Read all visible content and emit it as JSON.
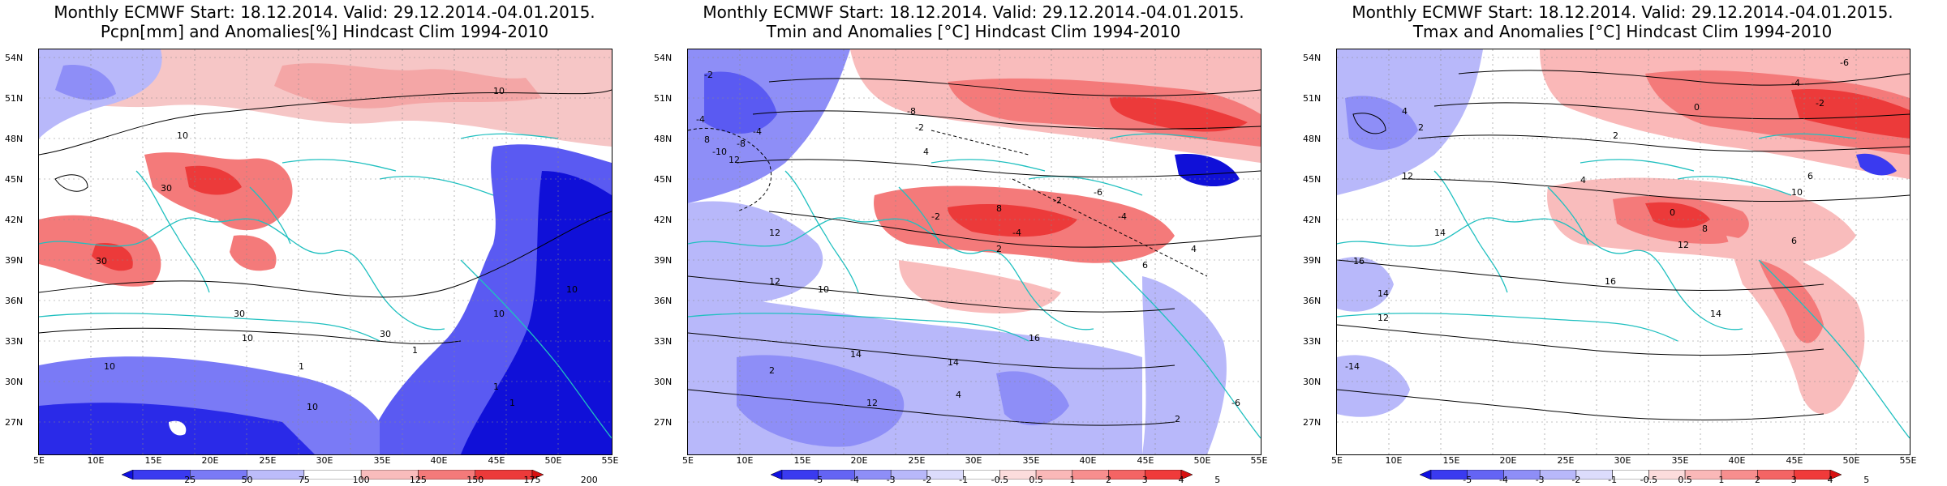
{
  "panels": [
    {
      "id": "pcpn",
      "title_line1": "Monthly ECMWF Start: 18.12.2014. Valid: 29.12.2014.-04.01.2015.",
      "title_line2": "Pcpn[mm] and Anomalies[%] Hindcast Clim 1994-2010",
      "colorbar_labels": [
        "25",
        "50",
        "75",
        "100",
        "125",
        "150",
        "175",
        "200"
      ],
      "colorbar_colors": [
        "#1010e0",
        "#3a3af0",
        "#7a7af6",
        "#bcbcfa",
        "#ffffff",
        "#f9bcbc",
        "#f47a7a",
        "#ec3a3a",
        "#d81010"
      ],
      "contour_labels": [
        "10",
        "10",
        "30",
        "30",
        "30",
        "10",
        "10",
        "10",
        "30",
        "1",
        "10",
        "1",
        "1",
        "1",
        "10"
      ]
    },
    {
      "id": "tmin",
      "title_line1": "Monthly ECMWF Start: 18.12.2014. Valid: 29.12.2014.-04.01.2015.",
      "title_line2": "Tmin and Anomalies [°C] Hindcast Clim 1994-2010",
      "colorbar_labels": [
        "-5",
        "-4",
        "-3",
        "-2",
        "-1",
        "-0.5",
        "0.5",
        "1",
        "2",
        "3",
        "4",
        "5"
      ],
      "colorbar_colors": [
        "#1010e0",
        "#3a3af0",
        "#6464f4",
        "#8e8ef7",
        "#b8b8fa",
        "#dcdcfc",
        "#ffffff",
        "#fcdcdc",
        "#fab8b8",
        "#f78e8e",
        "#f46464",
        "#f03a3a",
        "#d81010"
      ],
      "contour_labels": [
        "-2",
        "-4",
        "-10",
        "-8",
        "-4",
        "12",
        "8",
        "-8",
        "-2",
        "4",
        "8",
        "-2",
        "-4",
        "-2",
        "-6",
        "2",
        "-4",
        "12",
        "12",
        "10",
        "14",
        "16",
        "12",
        "14",
        "2",
        "4",
        "-6",
        "2",
        "6",
        "4"
      ]
    },
    {
      "id": "tmax",
      "title_line1": "Monthly ECMWF Start: 18.12.2014. Valid: 29.12.2014.-04.01.2015.",
      "title_line2": "Tmax and Anomalies [°C] Hindcast Clim 1994-2010",
      "colorbar_labels": [
        "-5",
        "-4",
        "-3",
        "-2",
        "-1",
        "-0.5",
        "0.5",
        "1",
        "2",
        "3",
        "4",
        "5"
      ],
      "colorbar_colors": [
        "#1010e0",
        "#3a3af0",
        "#6464f4",
        "#8e8ef7",
        "#b8b8fa",
        "#dcdcfc",
        "#ffffff",
        "#fcdcdc",
        "#fab8b8",
        "#f78e8e",
        "#f46464",
        "#f03a3a",
        "#d81010"
      ],
      "contour_labels": [
        "-6",
        "-4",
        "-2",
        "0",
        "2",
        "4",
        "6",
        "8",
        "10",
        "12",
        "14",
        "16",
        "12",
        "14",
        "16",
        "12",
        "-14",
        "14",
        "6",
        "0",
        "4",
        "2"
      ]
    }
  ],
  "lat_labels": [
    "54N",
    "51N",
    "48N",
    "45N",
    "42N",
    "39N",
    "36N",
    "33N",
    "30N",
    "27N"
  ],
  "lon_labels": [
    "5E",
    "10E",
    "15E",
    "20E",
    "25E",
    "30E",
    "35E",
    "40E",
    "45E",
    "50E",
    "55E"
  ]
}
